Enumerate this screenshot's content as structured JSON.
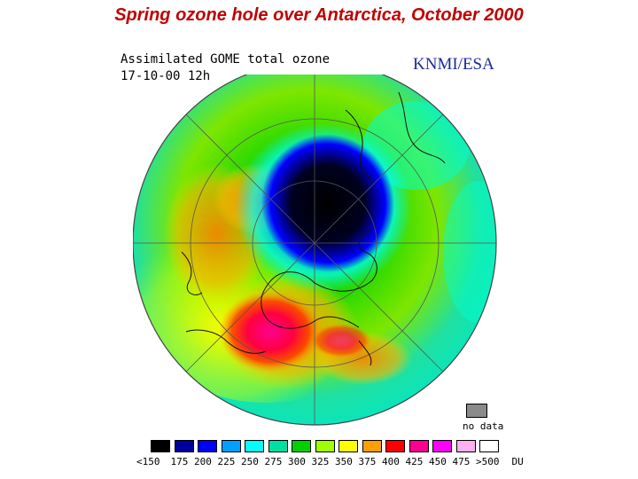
{
  "page": {
    "title": "Spring ozone hole over Antarctica, October 2000"
  },
  "map": {
    "header_line1": "Assimilated GOME total ozone",
    "header_line2": "17-10-00 12h",
    "credit": "KNMI/ESA",
    "no_data_label": "no data",
    "no_data_color": "#8a8a8a"
  },
  "legend": {
    "unit": "DU",
    "items": [
      {
        "label": "<150",
        "color": "#000000"
      },
      {
        "label": "175",
        "color": "#00009a"
      },
      {
        "label": "200",
        "color": "#0000ff"
      },
      {
        "label": "225",
        "color": "#00a0ff"
      },
      {
        "label": "250",
        "color": "#00ffff"
      },
      {
        "label": "275",
        "color": "#00e0a0"
      },
      {
        "label": "300",
        "color": "#00d000"
      },
      {
        "label": "325",
        "color": "#a0ff00"
      },
      {
        "label": "350",
        "color": "#ffff00"
      },
      {
        "label": "375",
        "color": "#ffa000"
      },
      {
        "label": "400",
        "color": "#ff0000"
      },
      {
        "label": "425",
        "color": "#ff0090"
      },
      {
        "label": "450",
        "color": "#ff00ff"
      },
      {
        "label": "475",
        "color": "#ffb0f0"
      },
      {
        "label": ">500",
        "color": "#ffffff"
      }
    ]
  }
}
